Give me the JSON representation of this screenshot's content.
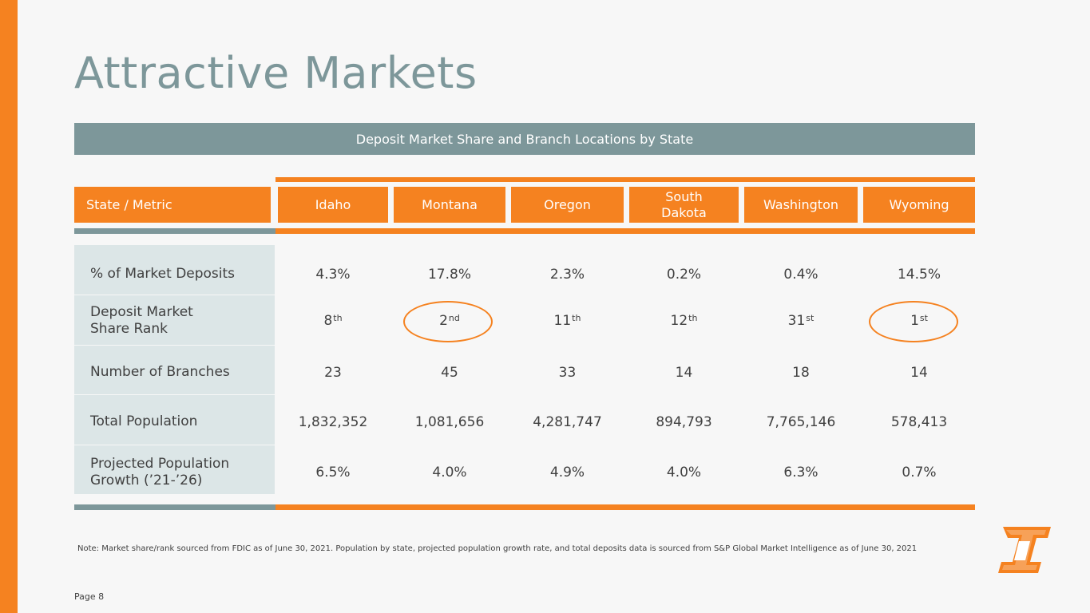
{
  "title": "Attractive Markets",
  "table_title": "Deposit Market Share and Branch Locations by State",
  "header": {
    "metric_label": "State / Metric",
    "states": [
      "Idaho",
      "Montana",
      "Oregon",
      "South Dakota",
      "Washington",
      "Wyoming"
    ]
  },
  "rows": [
    {
      "label": "% of Market Deposits",
      "values": [
        "4.3%",
        "17.8%",
        "2.3%",
        "0.2%",
        "0.4%",
        "14.5%"
      ]
    },
    {
      "label": "Deposit Market\nShare Rank",
      "values": [
        "8",
        "2",
        "11",
        "12",
        "31",
        "1"
      ],
      "suffixes": [
        "th",
        "nd",
        "th",
        "th",
        "st",
        "st"
      ]
    },
    {
      "label": "Number of Branches",
      "values": [
        "23",
        "45",
        "33",
        "14",
        "18",
        "14"
      ]
    },
    {
      "label": "Total Population",
      "values": [
        "1,832,352",
        "1,081,656",
        "4,281,747",
        "894,793",
        "7,765,146",
        "578,413"
      ]
    },
    {
      "label": "Projected Population\nGrowth (’21-’26)",
      "values": [
        "6.5%",
        "4.0%",
        "4.9%",
        "4.0%",
        "6.3%",
        "0.7%"
      ]
    }
  ],
  "highlighted": [
    "Montana",
    "Wyoming"
  ],
  "note": "Note: Market share/rank sourced from FDIC as of June 30, 2021.  Population by state, projected population growth rate, and total deposits data is sourced from S&P Global Market Intelligence as of June 30, 2021",
  "page_label": "Page 8",
  "colors": {
    "accent": "#f58220",
    "slate": "#7d979a",
    "metric_bg": "#dce6e7"
  },
  "logo_icon": "company-logo-icon"
}
